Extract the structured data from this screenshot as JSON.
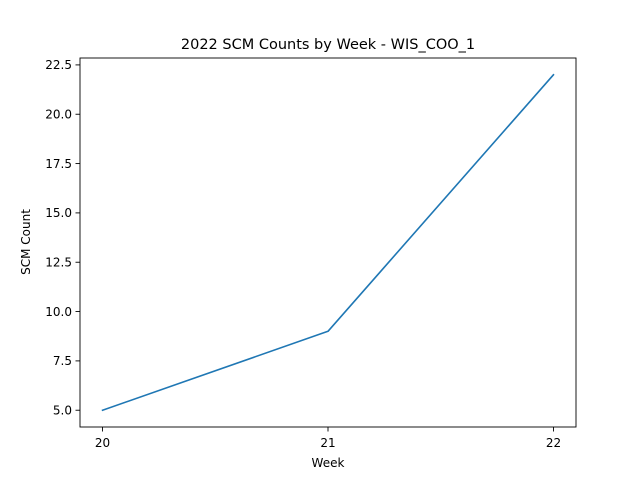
{
  "chart_data": {
    "type": "line",
    "title": "2022 SCM Counts by Week - WIS_COO_1",
    "xlabel": "Week",
    "ylabel": "SCM Count",
    "x": [
      20,
      21,
      22
    ],
    "x_tick_labels": [
      "20",
      "21",
      "22"
    ],
    "series": [
      {
        "values": [
          5,
          9,
          22
        ],
        "color": "#1f77b4"
      }
    ],
    "y_ticks": [
      5.0,
      7.5,
      10.0,
      12.5,
      15.0,
      17.5,
      20.0,
      22.5
    ],
    "y_tick_labels": [
      "5.0",
      "7.5",
      "10.0",
      "12.5",
      "15.0",
      "17.5",
      "20.0",
      "22.5"
    ],
    "xlim": [
      19.9,
      22.1
    ],
    "ylim": [
      4.15,
      22.85
    ],
    "grid": false,
    "legend": "none"
  }
}
